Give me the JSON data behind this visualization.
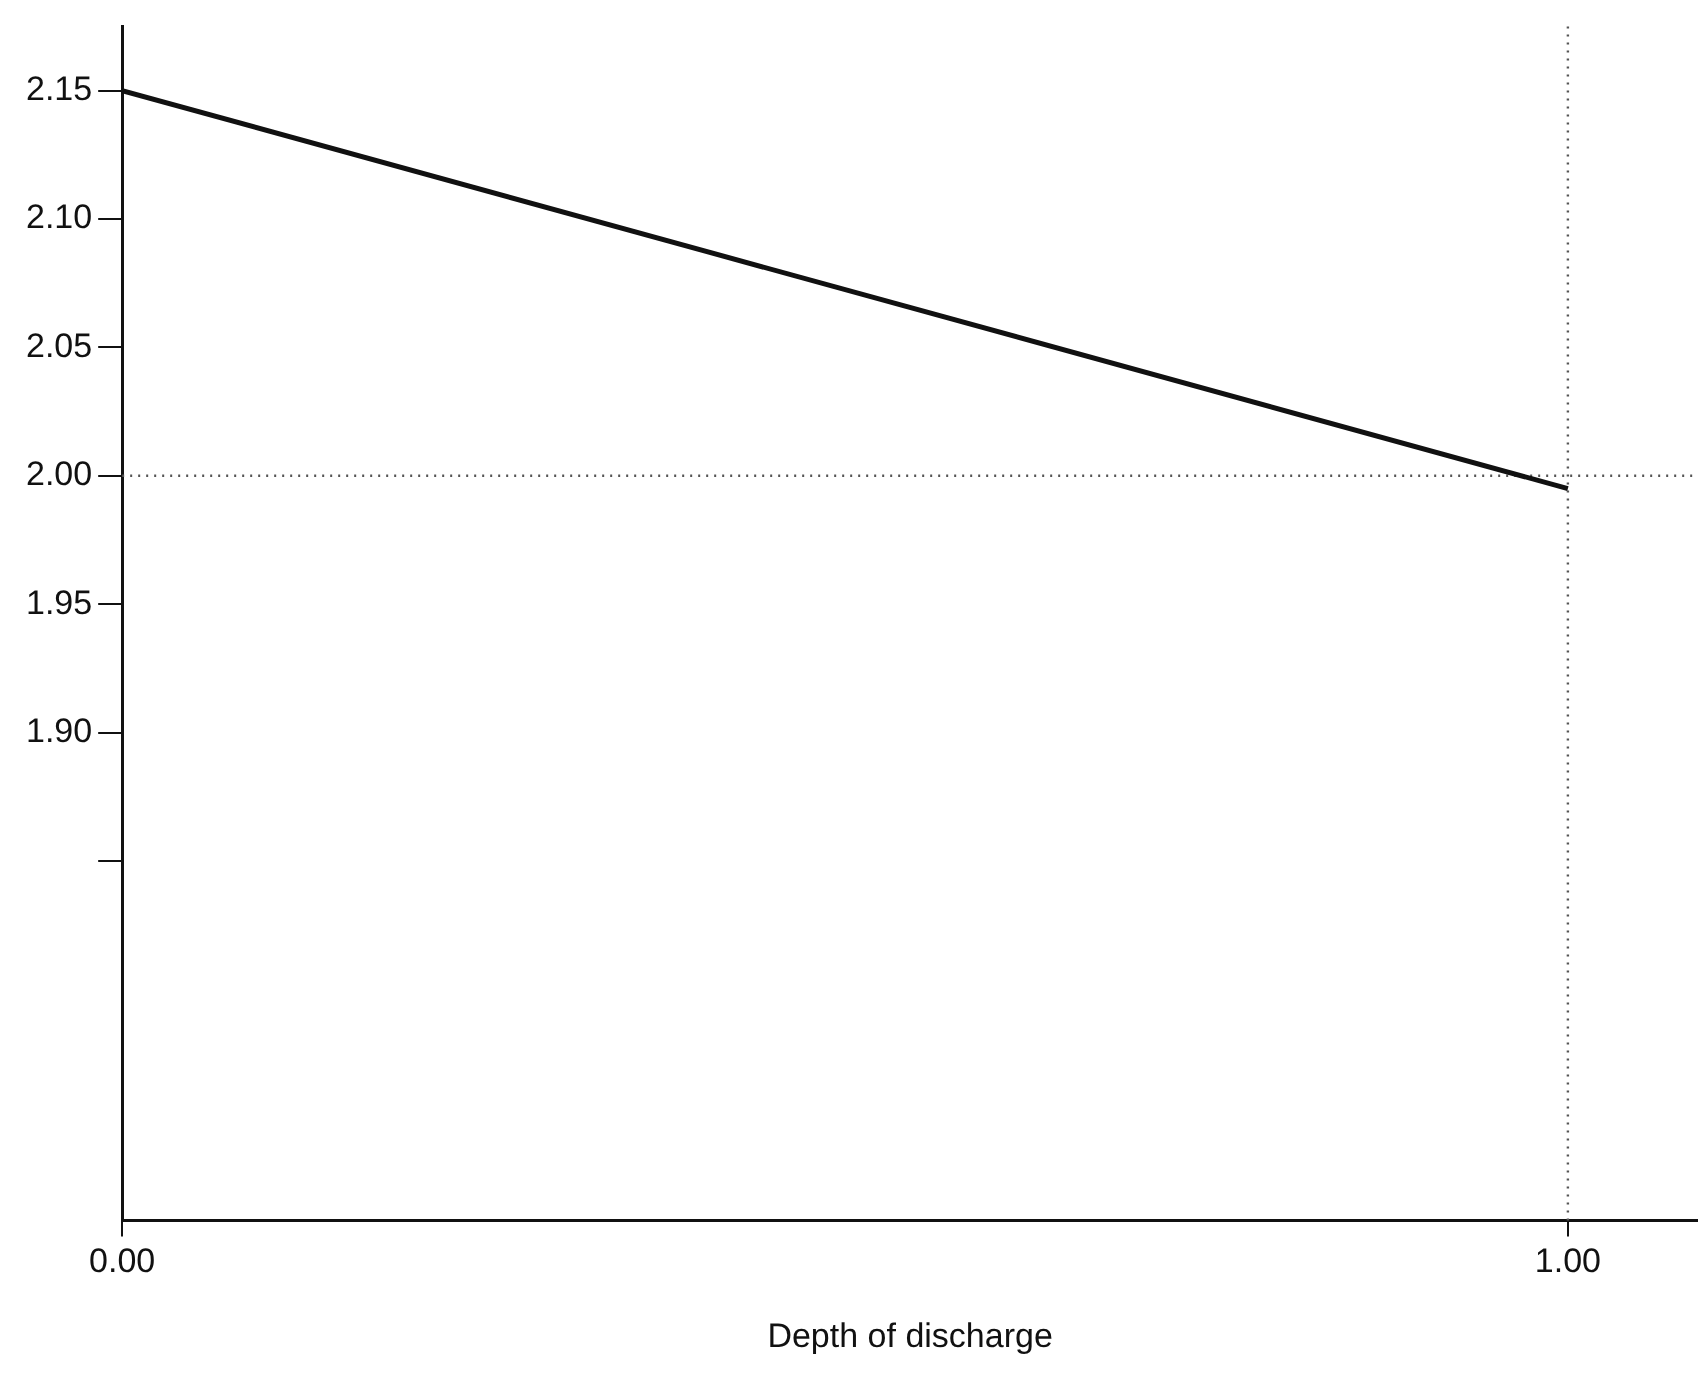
{
  "chart_data": {
    "type": "line",
    "xlabel": "Depth of discharge",
    "x": [
      0,
      1.0
    ],
    "series": [
      {
        "color": "#111111",
        "values": [
          2.15,
          1.995
        ]
      }
    ],
    "xlim": [
      0,
      1.09
    ],
    "ylim": [
      1.71,
      2.175
    ],
    "xticks": [
      {
        "value": 0,
        "label": "0.00"
      },
      {
        "value": 1,
        "label": "1.00"
      }
    ],
    "yticks": [
      {
        "value": 1.85,
        "label": null
      },
      {
        "value": 1.9,
        "label": "1.90"
      },
      {
        "value": 1.95,
        "label": "1.95"
      },
      {
        "value": 2.0,
        "label": "2.00"
      },
      {
        "value": 2.05,
        "label": "2.05"
      },
      {
        "value": 2.1,
        "label": "2.10"
      },
      {
        "value": 2.15,
        "label": "2.15"
      }
    ],
    "ref_lines": [
      {
        "axis": "y",
        "value": 2.0,
        "line_style": "dotted",
        "color": "#555555"
      },
      {
        "axis": "x",
        "value": 1.0,
        "line_style": "dotted",
        "color": "#555555"
      }
    ],
    "grid": false,
    "legend": false,
    "marker": "none",
    "line_style": "solid"
  }
}
